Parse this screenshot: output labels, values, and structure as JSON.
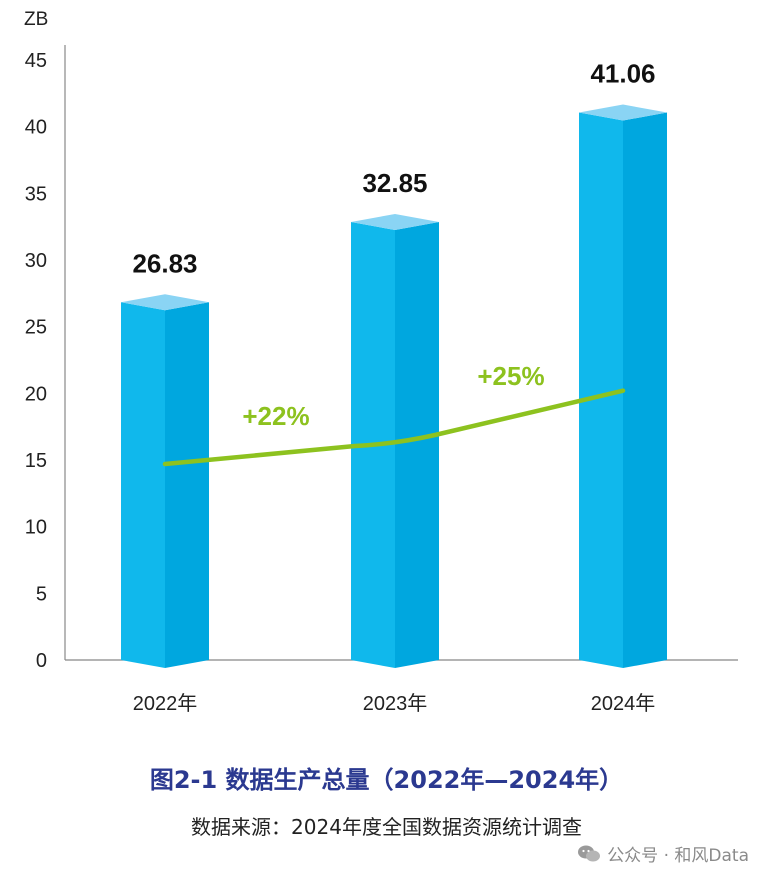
{
  "chart_data": {
    "type": "bar",
    "unit": "ZB",
    "categories": [
      "2022年",
      "2023年",
      "2024年"
    ],
    "values": [
      26.83,
      32.85,
      41.06
    ],
    "value_labels": [
      "26.83",
      "32.85",
      "41.06"
    ],
    "ylim": [
      0,
      45
    ],
    "yticks": [
      0,
      5,
      10,
      15,
      20,
      25,
      30,
      35,
      40,
      45
    ],
    "growth_line": {
      "values": [
        14.7,
        16.2,
        20.2
      ]
    },
    "growth_labels": [
      "+22%",
      "+25%"
    ],
    "colors": {
      "bar_front": "#10b8ec",
      "bar_side": "#00a7df",
      "bar_top": "#8ad4f4",
      "line": "#8dc21f"
    },
    "grid": false
  },
  "caption": {
    "title": "图2-1 数据生产总量（2022年—2024年）",
    "source": "数据来源：2024年度全国数据资源统计调查"
  },
  "watermark": {
    "text": "公众号 · 和风Data",
    "icon": "wechat-icon"
  }
}
